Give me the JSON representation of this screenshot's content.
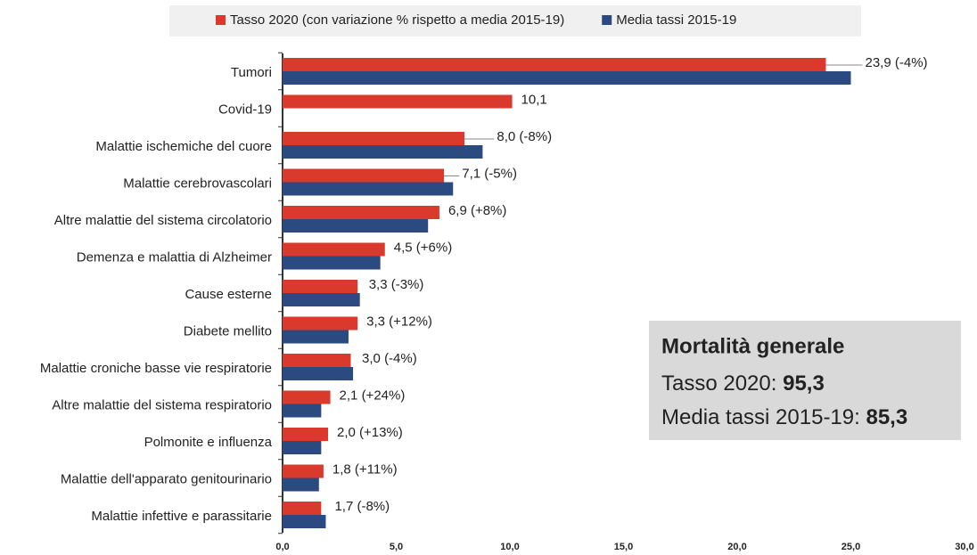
{
  "chart_data": {
    "type": "bar",
    "orientation": "horizontal",
    "categories": [
      "Tumori",
      "Covid-19",
      "Malattie ischemiche del cuore",
      "Malattie cerebrovascolari",
      "Altre malattie del sistema circolatorio",
      "Demenza e malattia di Alzheimer",
      "Cause esterne",
      "Diabete mellito",
      "Malattie croniche basse vie respiratorie",
      "Altre malattie del sistema respiratorio",
      "Polmonite e influenza",
      "Malattie dell'apparato genitourinario",
      "Malattie infettive e parassitarie"
    ],
    "series": [
      {
        "name": "Tasso 2020 (con variazione % rispetto a media 2015-19)",
        "color": "#d93a2b",
        "values": [
          23.9,
          10.1,
          8.0,
          7.1,
          6.9,
          4.5,
          3.3,
          3.3,
          3.0,
          2.1,
          2.0,
          1.8,
          1.7
        ],
        "value_labels": [
          "23,9 (-4%)",
          "10,1",
          "8,0 (-8%)",
          "7,1 (-5%)",
          "6,9 (+8%)",
          "4,5 (+6%)",
          "3,3 (-3%)",
          "3,3 (+12%)",
          "3,0 (-4%)",
          "2,1 (+24%)",
          "2,0 (+13%)",
          "1,8 (+11%)",
          "1,7 (-8%)"
        ]
      },
      {
        "name": "Media tassi 2015-19",
        "color": "#2a4a80",
        "values": [
          25.0,
          null,
          8.8,
          7.5,
          6.4,
          4.3,
          3.4,
          2.9,
          3.1,
          1.7,
          1.7,
          1.6,
          1.9
        ]
      }
    ],
    "xlim": [
      0,
      30
    ],
    "xticks": [
      {
        "value": 0,
        "label": "0,0"
      },
      {
        "value": 5,
        "label": "5,0"
      },
      {
        "value": 10,
        "label": "10,0"
      },
      {
        "value": 15,
        "label": "15,0"
      },
      {
        "value": 20,
        "label": "20,0"
      },
      {
        "value": 25,
        "label": "25,0"
      },
      {
        "value": 30,
        "label": "30,0"
      }
    ],
    "legend": "top",
    "annotation": {
      "title": "Mortalità generale",
      "line1_label": "Tasso 2020: ",
      "line1_value": "95,3",
      "line2_label": "Media tassi 2015-19: ",
      "line2_value": "85,3"
    }
  }
}
